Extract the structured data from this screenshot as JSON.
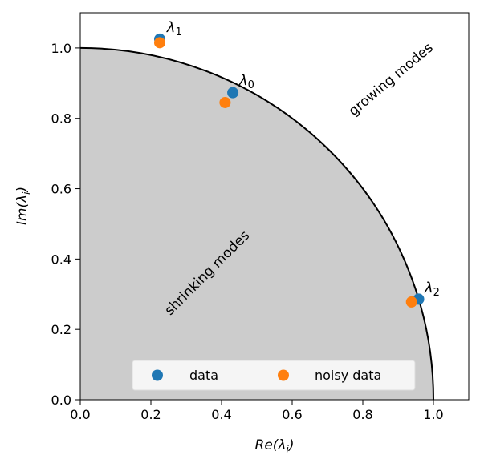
{
  "chart_data": {
    "type": "scatter",
    "xlabel": "Re(λ_i)",
    "ylabel": "Im(λ_i)",
    "xlim": [
      0.0,
      1.1
    ],
    "ylim": [
      0.0,
      1.1
    ],
    "xticks": [
      "0.0",
      "0.2",
      "0.4",
      "0.6",
      "0.8",
      "1.0"
    ],
    "yticks": [
      "0.0",
      "0.2",
      "0.4",
      "0.6",
      "0.8",
      "1.0"
    ],
    "grid": false,
    "legend_position": "bottom-right",
    "legend_columns": 2,
    "unit_circle": {
      "radius": 1.0,
      "fill_color": "#cccccc",
      "stroke_color": "#000000"
    },
    "region_labels": [
      {
        "text": "growing modes",
        "x": 0.88,
        "y": 0.91,
        "rotation_deg": 40
      },
      {
        "text": "shrinking modes",
        "x": 0.36,
        "y": 0.36,
        "rotation_deg": 45
      }
    ],
    "series": [
      {
        "name": "data",
        "color": "#1f77b4",
        "points": [
          {
            "x": 0.432,
            "y": 0.873
          },
          {
            "x": 0.225,
            "y": 1.025
          },
          {
            "x": 0.958,
            "y": 0.286
          }
        ]
      },
      {
        "name": "noisy data",
        "color": "#ff7f0e",
        "points": [
          {
            "x": 0.41,
            "y": 0.845
          },
          {
            "x": 0.225,
            "y": 1.015
          },
          {
            "x": 0.938,
            "y": 0.278
          }
        ]
      }
    ],
    "point_labels": [
      {
        "text": "λ",
        "sub": "0",
        "x": 0.45,
        "y": 0.895
      },
      {
        "text": "λ",
        "sub": "1",
        "x": 0.245,
        "y": 1.045
      },
      {
        "text": "λ",
        "sub": "2",
        "x": 0.975,
        "y": 0.305
      }
    ]
  }
}
